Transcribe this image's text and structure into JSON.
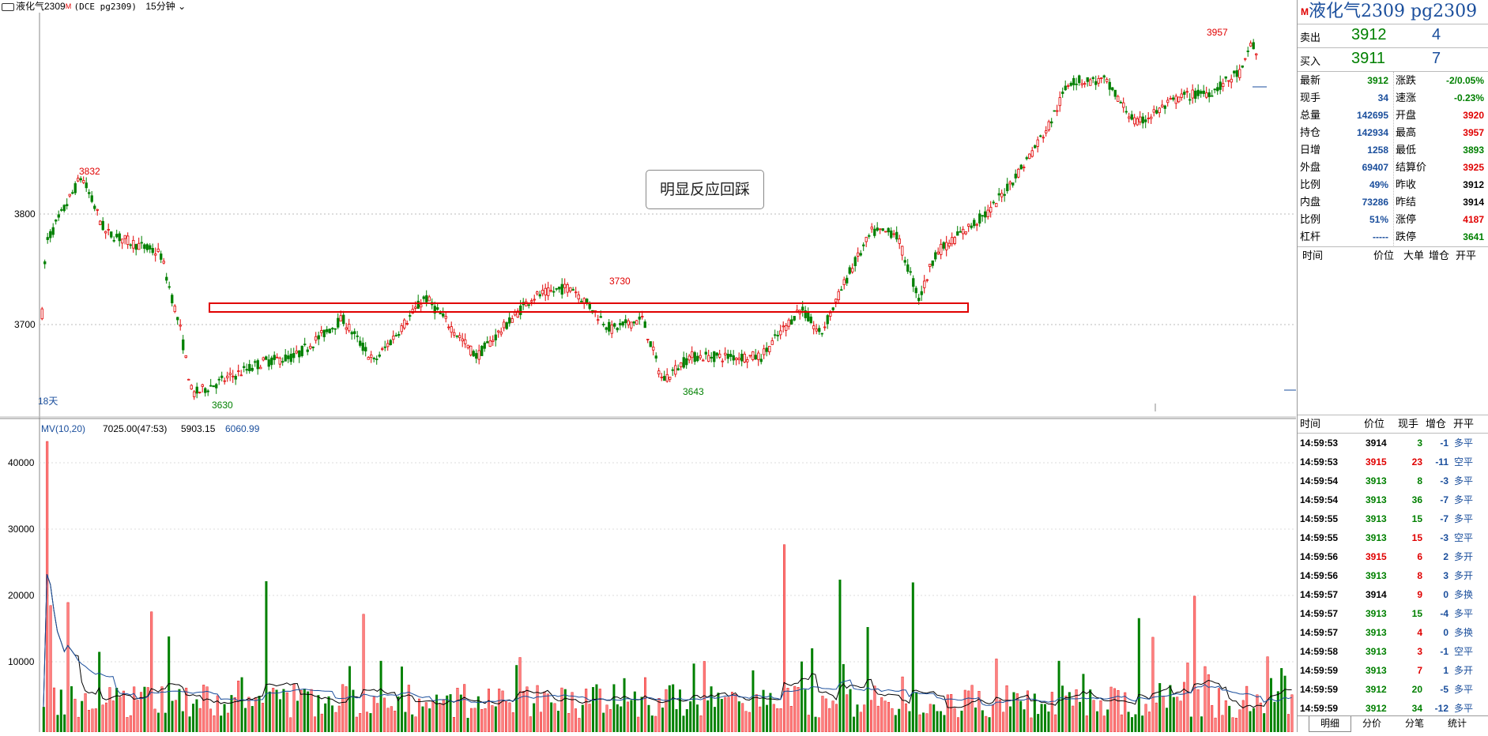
{
  "window": {
    "icon_name": "chart-mode-icon",
    "title": "液化气2309",
    "title_mark": "M",
    "subtitle": "(DCE pg2309)",
    "period": "15分钟"
  },
  "chart": {
    "price_ticks": [
      "3800",
      "3700"
    ],
    "high_label": "3832",
    "low_label": "3630",
    "label_3730": "3730",
    "label_3643": "3643",
    "label_3957": "3957",
    "days_label": "18天",
    "annotation": "明显反应回踩",
    "indicator_label": "MV(10,20)",
    "indicator_v1": "7025.00(47:53)",
    "indicator_v2": "5903.15",
    "indicator_v3": "6060.99",
    "volume_ticks": [
      "40000",
      "30000",
      "20000",
      "10000"
    ],
    "colors": {
      "up": "#e00000",
      "down": "#008000",
      "ma1": "#000000",
      "ma2": "#1a4e9c",
      "box": "#e00000"
    }
  },
  "chart_data": {
    "type": "candlestick",
    "y_price_range": [
      3618,
      3970
    ],
    "key_prices": {
      "high_left": 3832,
      "low_left": 3630,
      "peak_mid": 3730,
      "low_mid": 3643,
      "high_right": 3957
    },
    "support_zone": [
      3710,
      3718
    ],
    "volume_range": [
      0,
      44000
    ]
  },
  "panel": {
    "title_mark": "M",
    "title": "液化气2309  pg2309",
    "ask_label": "卖出",
    "ask_price": "3912",
    "ask_vol": "4",
    "bid_label": "买入",
    "bid_price": "3911",
    "bid_vol": "7",
    "stats_left": [
      {
        "k": "最新",
        "v": "3912",
        "c": "green"
      },
      {
        "k": "现手",
        "v": "34",
        "c": "blue"
      },
      {
        "k": "总量",
        "v": "142695",
        "c": "blue"
      },
      {
        "k": "持仓",
        "v": "142934",
        "c": "blue"
      },
      {
        "k": "日增",
        "v": "1258",
        "c": "blue"
      },
      {
        "k": "外盘",
        "v": "69407",
        "c": "blue"
      },
      {
        "k": "比例",
        "v": "49%",
        "c": "blue"
      },
      {
        "k": "内盘",
        "v": "73286",
        "c": "blue"
      },
      {
        "k": "比例",
        "v": "51%",
        "c": "blue"
      },
      {
        "k": "杠杆",
        "v": "-----",
        "c": "blue"
      }
    ],
    "stats_right": [
      {
        "k": "涨跌",
        "v": "-2/0.05%",
        "c": "green"
      },
      {
        "k": "速涨",
        "v": "-0.23%",
        "c": "green"
      },
      {
        "k": "开盘",
        "v": "3920",
        "c": "red"
      },
      {
        "k": "最高",
        "v": "3957",
        "c": "red"
      },
      {
        "k": "最低",
        "v": "3893",
        "c": "green"
      },
      {
        "k": "结算价",
        "v": "3925",
        "c": "red"
      },
      {
        "k": "昨收",
        "v": "3912",
        "c": "black"
      },
      {
        "k": "昨结",
        "v": "3914",
        "c": "black"
      },
      {
        "k": "涨停",
        "v": "4187",
        "c": "red"
      },
      {
        "k": "跌停",
        "v": "3641",
        "c": "green"
      }
    ],
    "bigorder_header": {
      "time": "时间",
      "price": "价位",
      "big": "大单",
      "inc": "增仓",
      "open": "开平"
    },
    "tick_header": {
      "time": "时间",
      "price": "价位",
      "hand": "现手",
      "inc": "增仓",
      "open": "开平"
    },
    "ticks": [
      {
        "t": "14:59:53",
        "p": "3914",
        "pc": "black",
        "h": "3",
        "hc": "green",
        "i": "-1",
        "o": "多平"
      },
      {
        "t": "14:59:53",
        "p": "3915",
        "pc": "red",
        "h": "23",
        "hc": "red",
        "i": "-11",
        "o": "空平"
      },
      {
        "t": "14:59:54",
        "p": "3913",
        "pc": "green",
        "h": "8",
        "hc": "green",
        "i": "-3",
        "o": "多平"
      },
      {
        "t": "14:59:54",
        "p": "3913",
        "pc": "green",
        "h": "36",
        "hc": "green",
        "i": "-7",
        "o": "多平"
      },
      {
        "t": "14:59:55",
        "p": "3913",
        "pc": "green",
        "h": "15",
        "hc": "green",
        "i": "-7",
        "o": "多平"
      },
      {
        "t": "14:59:55",
        "p": "3913",
        "pc": "green",
        "h": "15",
        "hc": "red",
        "i": "-3",
        "o": "空平"
      },
      {
        "t": "14:59:56",
        "p": "3915",
        "pc": "red",
        "h": "6",
        "hc": "red",
        "i": "2",
        "o": "多开"
      },
      {
        "t": "14:59:56",
        "p": "3913",
        "pc": "green",
        "h": "8",
        "hc": "red",
        "i": "3",
        "o": "多开"
      },
      {
        "t": "14:59:57",
        "p": "3914",
        "pc": "black",
        "h": "9",
        "hc": "red",
        "i": "0",
        "o": "多换"
      },
      {
        "t": "14:59:57",
        "p": "3913",
        "pc": "green",
        "h": "15",
        "hc": "green",
        "i": "-4",
        "o": "多平"
      },
      {
        "t": "14:59:57",
        "p": "3913",
        "pc": "green",
        "h": "4",
        "hc": "red",
        "i": "0",
        "o": "多换"
      },
      {
        "t": "14:59:58",
        "p": "3913",
        "pc": "green",
        "h": "3",
        "hc": "red",
        "i": "-1",
        "o": "空平"
      },
      {
        "t": "14:59:59",
        "p": "3913",
        "pc": "green",
        "h": "7",
        "hc": "red",
        "i": "1",
        "o": "多开"
      },
      {
        "t": "14:59:59",
        "p": "3912",
        "pc": "green",
        "h": "20",
        "hc": "green",
        "i": "-5",
        "o": "多平"
      },
      {
        "t": "14:59:59",
        "p": "3912",
        "pc": "green",
        "h": "34",
        "hc": "green",
        "i": "-12",
        "o": "多平"
      }
    ],
    "tabs": [
      "明细",
      "分价",
      "分笔",
      "统计"
    ]
  }
}
